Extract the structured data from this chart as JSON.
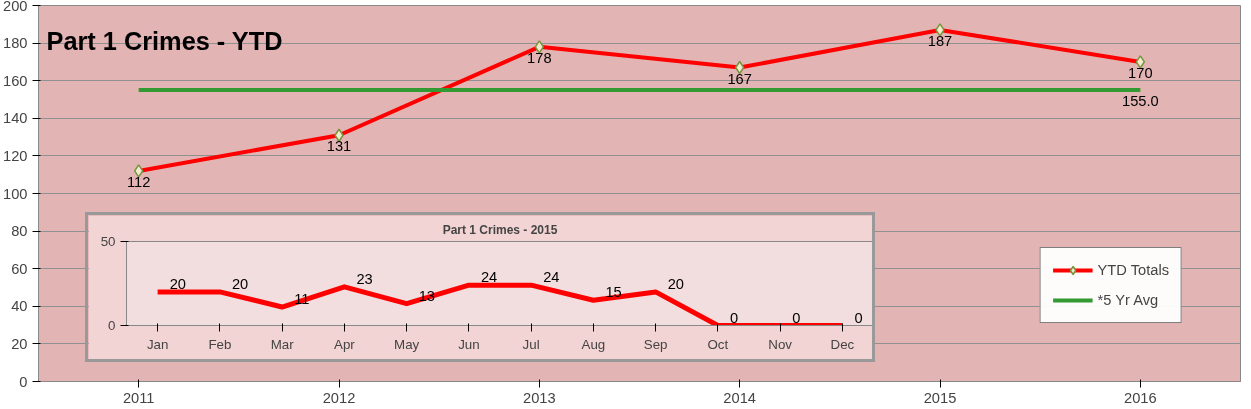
{
  "chart_data": [
    {
      "type": "line",
      "title": "Part 1 Crimes - YTD",
      "categories": [
        "2011",
        "2012",
        "2013",
        "2014",
        "2015",
        "2016"
      ],
      "series": [
        {
          "name": "YTD Totals",
          "color": "#ff0000",
          "marker": "diamond",
          "values": [
            112,
            131,
            178,
            167,
            187,
            170
          ],
          "value_labels": [
            "112",
            "131",
            "178",
            "167",
            "187",
            "170"
          ]
        },
        {
          "name": "*5 Yr Avg",
          "color": "#339933",
          "marker": "none",
          "values": [
            155,
            155,
            155,
            155,
            155,
            155
          ],
          "value_labels": [
            null,
            null,
            null,
            null,
            null,
            "155.0"
          ]
        }
      ],
      "ylim": [
        0,
        200
      ],
      "yticks": [
        0,
        20,
        40,
        60,
        80,
        100,
        120,
        140,
        160,
        180,
        200
      ],
      "grid": "y",
      "legend": "bottom right"
    },
    {
      "type": "line",
      "title": "Part 1 Crimes - 2015",
      "categories": [
        "Jan",
        "Feb",
        "Mar",
        "Apr",
        "May",
        "Jun",
        "Jul",
        "Aug",
        "Sep",
        "Oct",
        "Nov",
        "Dec"
      ],
      "series": [
        {
          "color": "#ff0000",
          "values": [
            20,
            20,
            11,
            23,
            13,
            24,
            24,
            15,
            20,
            0,
            0,
            0
          ]
        }
      ],
      "ylim": [
        0,
        50
      ],
      "yticks": [
        0,
        50
      ],
      "data_labels": true
    }
  ]
}
